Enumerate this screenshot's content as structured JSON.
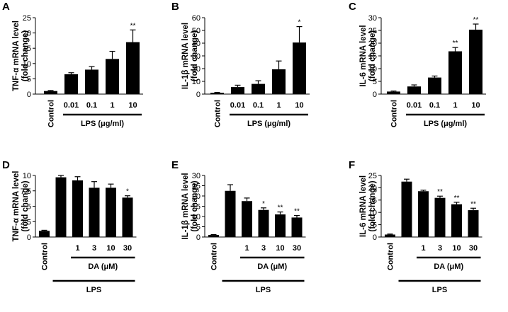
{
  "chart_data": [
    {
      "type": "bar",
      "panel": "A",
      "ylabel": [
        "TNF-α mRNA level",
        "(fold change)"
      ],
      "ylim": [
        0,
        25
      ],
      "yticks": [
        "0",
        "5",
        "10",
        "15",
        "20",
        "25"
      ],
      "categories": [
        "Control",
        "0.01",
        "0.1",
        "1",
        "10"
      ],
      "values": [
        1.0,
        6.5,
        8.0,
        11.5,
        17.0
      ],
      "errors": [
        0.2,
        0.5,
        1.0,
        2.5,
        4.0
      ],
      "significance": [
        "",
        "",
        "",
        "",
        "**"
      ],
      "group_label": "LPS (μg/ml)",
      "outer_label": ""
    },
    {
      "type": "bar",
      "panel": "B",
      "ylabel": [
        "IL-1β mRNA level",
        "(fold change)"
      ],
      "ylim": [
        0,
        60
      ],
      "yticks": [
        "0",
        "10",
        "20",
        "30",
        "40",
        "50",
        "60"
      ],
      "categories": [
        "Control",
        "0.01",
        "0.1",
        "1",
        "10"
      ],
      "values": [
        1.0,
        5.5,
        8.0,
        19.5,
        40.5
      ],
      "errors": [
        0.3,
        1.5,
        2.5,
        6.5,
        12.5
      ],
      "significance": [
        "",
        "",
        "",
        "",
        "*"
      ],
      "group_label": "LPS (μg/ml)",
      "outer_label": ""
    },
    {
      "type": "bar",
      "panel": "C",
      "ylabel": [
        "IL-6 mRNA level",
        "(fold change)"
      ],
      "ylim": [
        0,
        30
      ],
      "yticks": [
        "0",
        "5",
        "10",
        "15",
        "20",
        "25",
        "30"
      ],
      "categories": [
        "Control",
        "0.01",
        "0.1",
        "1",
        "10"
      ],
      "values": [
        1.0,
        3.0,
        6.5,
        16.8,
        25.3
      ],
      "errors": [
        0.2,
        0.6,
        0.6,
        1.5,
        2.2
      ],
      "significance": [
        "",
        "",
        "",
        "**",
        "**"
      ],
      "group_label": "LPS (μg/ml)",
      "outer_label": ""
    },
    {
      "type": "bar",
      "panel": "D",
      "ylabel": [
        "TNF-α mRNA level",
        "(fold change)"
      ],
      "ylim": [
        0,
        10
      ],
      "yticks": [
        "0",
        "2.5",
        "5",
        "7.5",
        "10"
      ],
      "categories": [
        "Control",
        "",
        "1",
        "3",
        "10",
        "30"
      ],
      "values": [
        1.0,
        9.7,
        9.2,
        8.0,
        8.0,
        6.4
      ],
      "errors": [
        0.1,
        0.3,
        0.6,
        1.0,
        0.6,
        0.3
      ],
      "significance": [
        "",
        "",
        "",
        "",
        "",
        "*"
      ],
      "group_label": "DA (μM)",
      "outer_label": "LPS"
    },
    {
      "type": "bar",
      "panel": "E",
      "ylabel": [
        "IL-1β mRNA level",
        "(fold change)"
      ],
      "ylim": [
        0,
        30
      ],
      "yticks": [
        "0",
        "5",
        "10",
        "15",
        "20",
        "25",
        "30"
      ],
      "categories": [
        "Control",
        "",
        "1",
        "3",
        "10",
        "30"
      ],
      "values": [
        1.0,
        22.5,
        17.5,
        13.2,
        11.0,
        9.5
      ],
      "errors": [
        0.2,
        3.0,
        1.5,
        1.0,
        1.2,
        1.0
      ],
      "significance": [
        "",
        "",
        "",
        "*",
        "**",
        "**"
      ],
      "group_label": "DA (μM)",
      "outer_label": "LPS"
    },
    {
      "type": "bar",
      "panel": "F",
      "ylabel": [
        "IL-6 mRNA level",
        "(fold change)"
      ],
      "ylim": [
        0,
        25
      ],
      "yticks": [
        "0",
        "5",
        "10",
        "15",
        "20",
        "25"
      ],
      "categories": [
        "Control",
        "",
        "1",
        "3",
        "10",
        "30"
      ],
      "values": [
        1.0,
        22.5,
        18.6,
        15.9,
        13.3,
        10.9
      ],
      "errors": [
        0.2,
        1.0,
        0.4,
        0.7,
        0.8,
        0.8
      ],
      "significance": [
        "",
        "",
        "",
        "**",
        "**",
        "**"
      ],
      "group_label": "DA (μM)",
      "outer_label": "LPS"
    }
  ]
}
